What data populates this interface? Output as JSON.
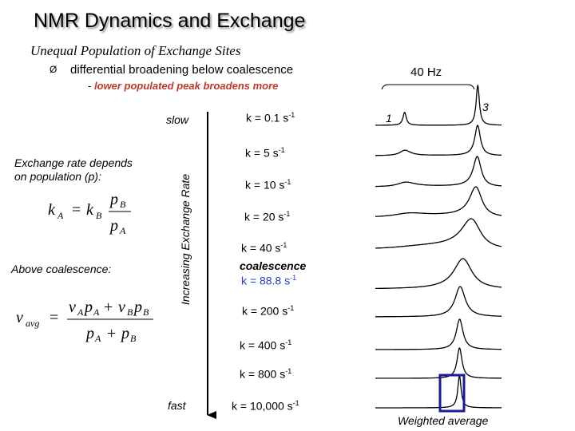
{
  "title": "NMR Dynamics and Exchange",
  "subtitle": "Unequal Population of Exchange Sites",
  "bullet": {
    "marker": "Ø",
    "text": "differential broadening below coalescence",
    "sub_prefix": "- ",
    "sub_text": "lower populated peak broadens more"
  },
  "separation_label": "40 Hz",
  "peak_labels": {
    "minor": "1",
    "major": "3"
  },
  "rate_axis": {
    "slow": "slow",
    "fast": "fast",
    "label": "Increasing Exchange Rate"
  },
  "left_notes": {
    "exchange_rate_line1": "Exchange rate depends",
    "exchange_rate_line2": "on population (p):",
    "above_coalescence": "Above coalescence:"
  },
  "equation1": {
    "lhs": "k",
    "lhs_sub": "A",
    "eq": "=",
    "k": "k",
    "k_sub": "B",
    "num": "p",
    "num_sub": "B",
    "den": "p",
    "den_sub": "A"
  },
  "equation2": {
    "lhs": "ν",
    "lhs_sub": "avg",
    "eq": "=",
    "n1": "ν",
    "n1_sub": "A",
    "n2": "p",
    "n2_sub": "A",
    "plus": "+",
    "n3": "ν",
    "n3_sub": "B",
    "n4": "p",
    "n4_sub": "B",
    "d1": "p",
    "d1_sub": "A",
    "d2": "p",
    "d2_sub": "B"
  },
  "rates": [
    {
      "prefix": "k = 0.1 s",
      "exp": "-1"
    },
    {
      "prefix": "k = 5 s",
      "exp": "-1"
    },
    {
      "prefix": "k = 10 s",
      "exp": "-1"
    },
    {
      "prefix": "k = 20 s",
      "exp": "-1"
    },
    {
      "prefix": "k = 40 s",
      "exp": "-1"
    },
    {
      "prefix": "k = 88.8 s",
      "exp": "-1"
    },
    {
      "prefix": "k = 200 s",
      "exp": "-1"
    },
    {
      "prefix": "k = 400 s",
      "exp": "-1"
    },
    {
      "prefix": "k = 800 s",
      "exp": "-1"
    },
    {
      "prefix": "k = 10,000 s",
      "exp": "-1"
    }
  ],
  "coalescence_label": "coalescence",
  "weighted_average_label": "Weighted average",
  "colors": {
    "coalescence_rate": "#2040c0",
    "emphasis": "#c0392b",
    "highlight_box": "#1a1a9a"
  }
}
